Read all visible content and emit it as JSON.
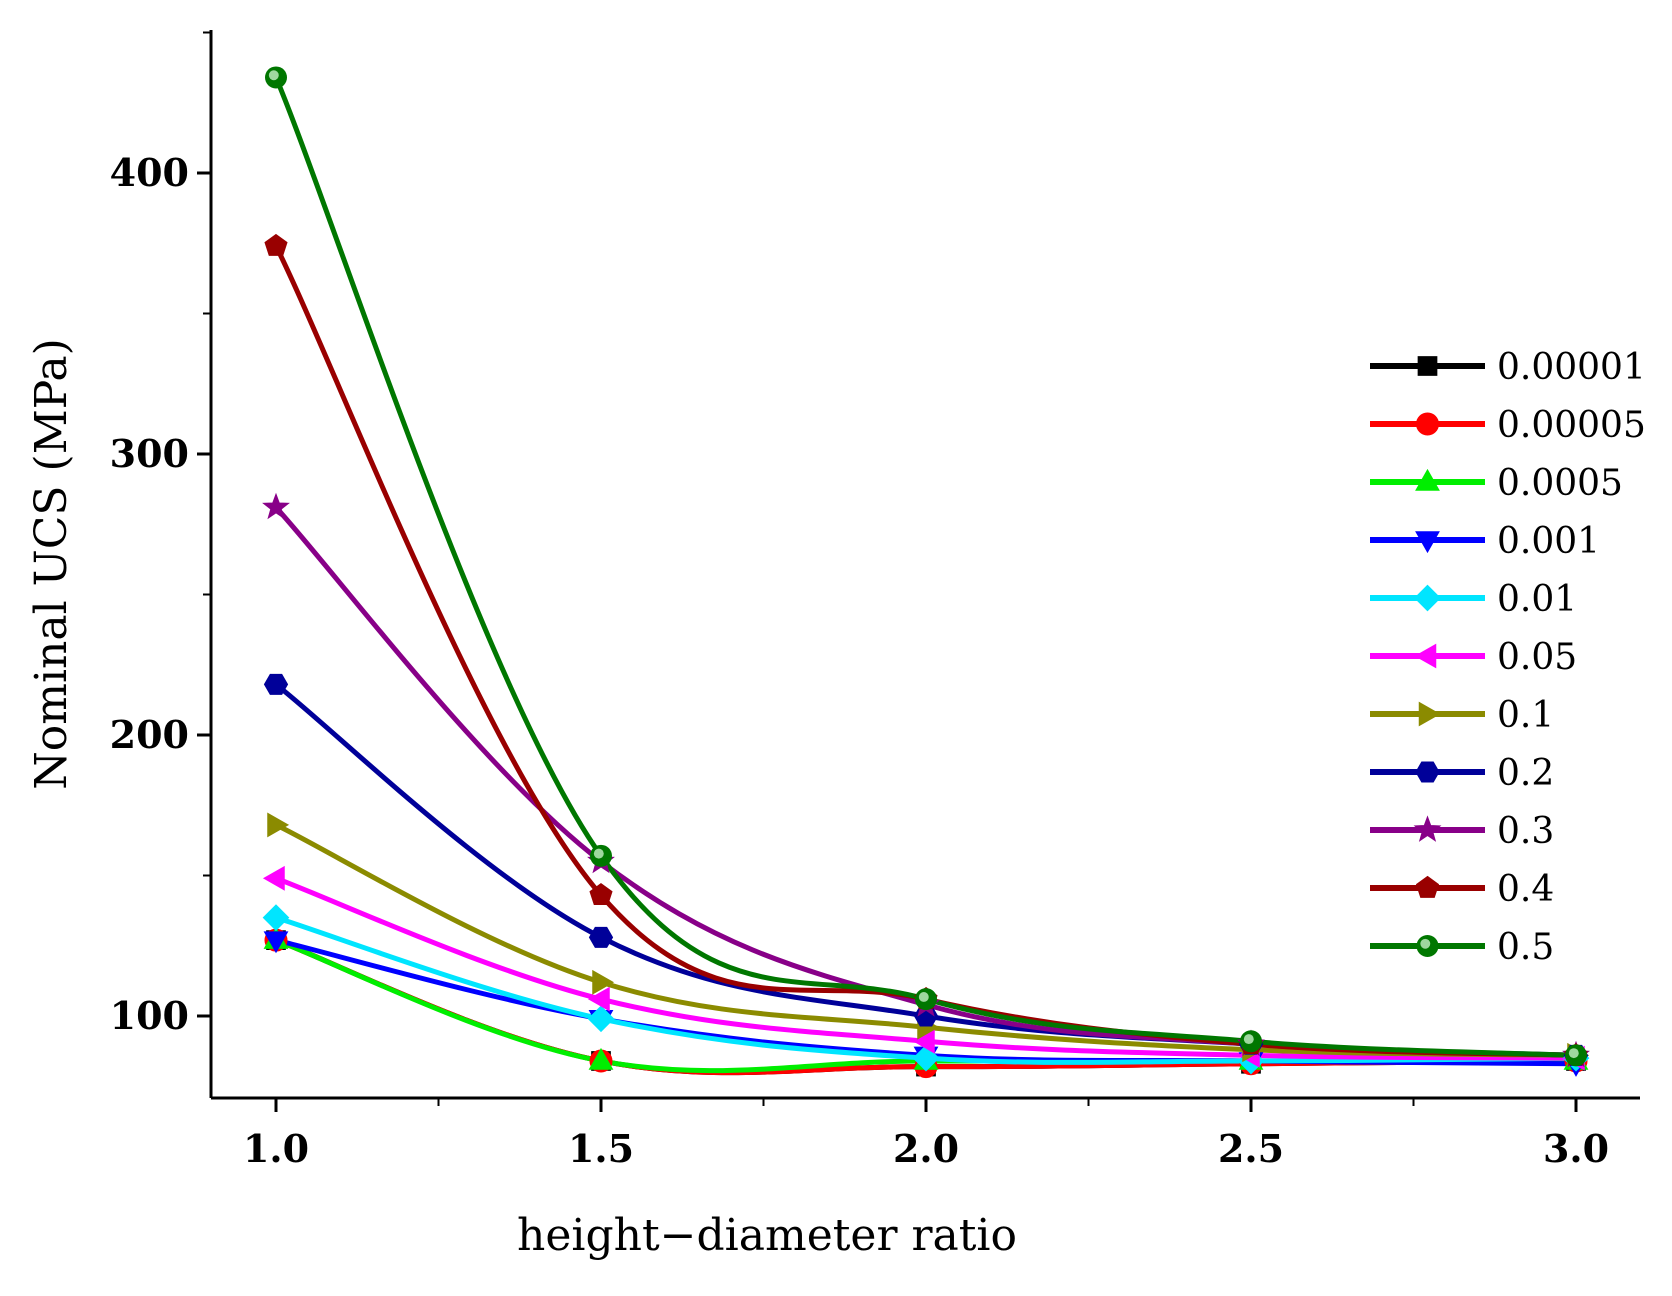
{
  "chart_data": {
    "type": "line",
    "title": "",
    "xlabel": "height−diameter ratio",
    "ylabel": "Nominal UCS (MPa)",
    "xlim": [
      0.9,
      3.1
    ],
    "ylim": [
      70,
      450
    ],
    "x": [
      1.0,
      1.5,
      2.0,
      2.5,
      3.0
    ],
    "x_ticks": [
      1.0,
      1.5,
      2.0,
      2.5,
      3.0
    ],
    "x_tick_labels": [
      "1.0",
      "1.5",
      "2.0",
      "2.5",
      "3.0"
    ],
    "y_ticks": [
      100,
      200,
      300,
      400
    ],
    "y_tick_labels": [
      "100",
      "200",
      "300",
      "400"
    ],
    "legend_position": "right",
    "series": [
      {
        "name": "0.00001",
        "color": "#000000",
        "marker": "square",
        "values": [
          127,
          84,
          82,
          83,
          84
        ]
      },
      {
        "name": "0.00005",
        "color": "#ff0000",
        "marker": "circle",
        "values": [
          127,
          84,
          82,
          83,
          84
        ]
      },
      {
        "name": "0.0005",
        "color": "#00ee00",
        "marker": "triangle-up",
        "values": [
          127,
          84,
          84,
          84,
          84
        ]
      },
      {
        "name": "0.001",
        "color": "#0000ff",
        "marker": "triangle-down",
        "values": [
          127,
          99,
          86,
          84,
          83
        ]
      },
      {
        "name": "0.01",
        "color": "#00e5ff",
        "marker": "diamond",
        "values": [
          135,
          99,
          85,
          84,
          85
        ]
      },
      {
        "name": "0.05",
        "color": "#ff00ff",
        "marker": "triangle-left",
        "values": [
          149,
          106,
          91,
          86,
          85
        ]
      },
      {
        "name": "0.1",
        "color": "#8b8b00",
        "marker": "triangle-right",
        "values": [
          168,
          112,
          96,
          88,
          86
        ]
      },
      {
        "name": "0.2",
        "color": "#000099",
        "marker": "hexagon",
        "values": [
          218,
          128,
          100,
          90,
          86
        ]
      },
      {
        "name": "0.3",
        "color": "#880088",
        "marker": "star",
        "values": [
          281,
          155,
          104,
          90,
          86
        ]
      },
      {
        "name": "0.4",
        "color": "#990000",
        "marker": "pentagon",
        "values": [
          374,
          143,
          106,
          90,
          86
        ]
      },
      {
        "name": "0.5",
        "color": "#007700",
        "marker": "ring",
        "values": [
          434,
          157,
          106,
          91,
          86
        ]
      }
    ]
  }
}
